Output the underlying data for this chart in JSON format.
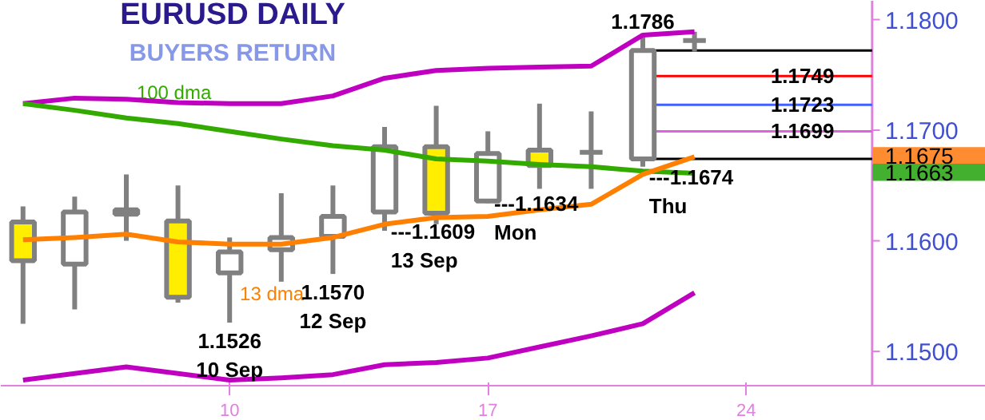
{
  "chart_data": {
    "type": "candlestick",
    "title": "EURUSD DAILY",
    "subtitle": "BUYERS RETURN",
    "categories": [
      null,
      null,
      null,
      null,
      "10",
      null,
      null,
      null,
      null,
      "17",
      null,
      null,
      null,
      null,
      "24",
      null,
      null
    ],
    "ohlc": [
      [
        1.1617,
        1.1631,
        1.1525,
        1.1582
      ],
      [
        1.1579,
        1.164,
        1.1538,
        1.1626
      ],
      [
        1.1628,
        1.166,
        1.16,
        1.1624
      ],
      [
        1.1618,
        1.165,
        1.1544,
        1.1549
      ],
      [
        1.1571,
        1.1603,
        1.1526,
        1.159
      ],
      [
        1.1592,
        1.1643,
        1.1563,
        1.1603
      ],
      [
        1.1604,
        1.165,
        1.157,
        1.1622
      ],
      [
        1.1626,
        1.1703,
        1.1609,
        1.1685
      ],
      [
        1.1685,
        1.1722,
        1.1615,
        1.1625
      ],
      [
        1.1636,
        1.1699,
        1.1634,
        1.1679
      ],
      [
        1.1682,
        1.1724,
        1.1647,
        1.1668
      ],
      [
        1.168,
        1.1717,
        1.1647,
        1.168
      ],
      [
        1.1674,
        1.1786,
        1.1667,
        1.1772
      ],
      [
        1.1781,
        1.1789,
        1.1771,
        1.1781
      ],
      null,
      null,
      null
    ],
    "colors": [
      "#ffee00",
      "#ffffff",
      "#ffee00",
      "#ffee00",
      "#ffffff",
      "#ffffff",
      "#ffffff",
      "#ffffff",
      "#ffee00",
      "#ffffff",
      "#ffee00",
      "#808080",
      "#ffffff",
      "#808080",
      null,
      null,
      null
    ],
    "series": [
      {
        "type": "line",
        "color": "#c000c0",
        "values": [
          1.1724,
          1.1729,
          1.1728,
          1.1725,
          1.1724,
          1.1724,
          1.1731,
          1.1747,
          1.1754,
          1.1756,
          1.1757,
          1.1758,
          1.1786,
          1.1789,
          null,
          null,
          null
        ]
      },
      {
        "type": "line",
        "color": "#c000c0",
        "values": [
          1.1474,
          1.148,
          1.1486,
          1.148,
          1.1474,
          1.1476,
          1.1479,
          1.1488,
          1.149,
          1.1494,
          1.1504,
          1.1514,
          1.1525,
          1.1553,
          null,
          null,
          null
        ]
      },
      {
        "type": "line",
        "name": "100 dma",
        "color": "#33aa00",
        "values": [
          1.1724,
          1.1718,
          1.1711,
          1.1706,
          1.1699,
          1.1692,
          1.1686,
          1.1682,
          1.1674,
          1.1672,
          1.1669,
          1.1667,
          1.1663,
          1.1661,
          null,
          null,
          null
        ]
      },
      {
        "type": "line",
        "name": "13 dma",
        "color": "#ff8000",
        "values": [
          1.1601,
          1.1603,
          1.1606,
          1.1599,
          1.1597,
          1.1597,
          1.1603,
          1.1615,
          1.1621,
          1.1622,
          1.1628,
          1.1633,
          1.166,
          1.1676,
          null,
          null,
          null
        ]
      }
    ],
    "ref_lines": [
      {
        "axis": "y",
        "value": 1.1772,
        "color": "#000000"
      },
      {
        "axis": "y",
        "value": 1.1749,
        "label": "1.1749",
        "color": "#ff0000"
      },
      {
        "axis": "y",
        "value": 1.1723,
        "label": "1.1723",
        "color": "#4060ff"
      },
      {
        "axis": "y",
        "value": 1.1699,
        "label": "1.1699",
        "color": "#e060e0"
      },
      {
        "axis": "y",
        "value": 1.1674,
        "color": "#000000"
      }
    ],
    "annotations": [
      {
        "text": "1.1526\n10 Sep",
        "x": "10",
        "y": 1.1526
      },
      {
        "text": "1.1570\n12 Sep",
        "y": 1.157
      },
      {
        "text": "---1.1609\n13 Sep",
        "y": 1.1609
      },
      {
        "text": "---1.1634\nMon",
        "x": "17",
        "y": 1.1634
      },
      {
        "text": "---1.1674\nThu",
        "y": 1.1674
      },
      {
        "text": "1.1786",
        "y": 1.1786
      },
      "1.1675",
      "1.1663"
    ],
    "ylim": [
      1.1469,
      1.1817
    ],
    "yticks": [
      {
        "value": 1.15,
        "label": "1.1500"
      },
      {
        "value": 1.16,
        "label": "1.1600"
      },
      {
        "value": 1.17,
        "label": "1.1700"
      },
      {
        "value": 1.18,
        "label": "1.1800"
      }
    ]
  }
}
